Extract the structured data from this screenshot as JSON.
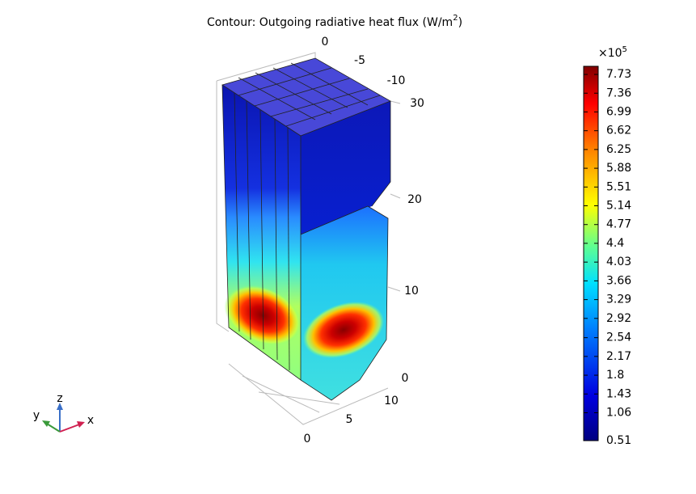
{
  "title": {
    "text": "Contour: Outgoing radiative heat flux (W/m",
    "superscript": "2",
    "suffix": ")"
  },
  "axis_labels": [
    "0",
    "-5",
    "-10",
    "30",
    "20",
    "10",
    "0",
    "10",
    "5",
    "0"
  ],
  "triad": {
    "x": "x",
    "y": "y",
    "z": "z"
  },
  "colorbar": {
    "multiplier": "×10",
    "exponent": "5",
    "lim": [
      0.51,
      7.89
    ],
    "ticks": [
      7.73,
      7.36,
      6.99,
      6.62,
      6.25,
      5.88,
      5.51,
      5.14,
      4.77,
      4.4,
      4.03,
      3.66,
      3.29,
      2.92,
      2.54,
      2.17,
      1.8,
      1.43,
      1.06,
      0.51
    ]
  }
}
